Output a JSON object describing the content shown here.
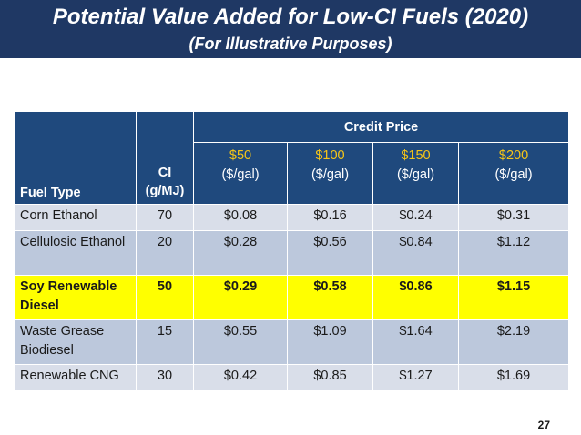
{
  "title": "Potential Value Added for Low-CI Fuels (2020)",
  "subtitle": "(For Illustrative Purposes)",
  "table": {
    "group_header": "Credit Price",
    "col_fuel": "Fuel Type",
    "col_ci_line1": "CI",
    "col_ci_line2": "(g/MJ)",
    "price_columns": [
      {
        "amount": "$50",
        "unit": "($/gal)"
      },
      {
        "amount": "$100",
        "unit": "($/gal)"
      },
      {
        "amount": "$150",
        "unit": "($/gal)"
      },
      {
        "amount": "$200",
        "unit": "($/gal)"
      }
    ],
    "rows": [
      {
        "fuel": "Corn Ethanol",
        "ci": "70",
        "values": [
          "$0.08",
          "$0.16",
          "$0.24",
          "$0.31"
        ]
      },
      {
        "fuel": "Cellulosic Ethanol",
        "ci": "20",
        "values": [
          "$0.28",
          "$0.56",
          "$0.84",
          "$1.12"
        ]
      },
      {
        "fuel": "Soy Renewable Diesel",
        "ci": "50",
        "values": [
          "$0.29",
          "$0.58",
          "$0.86",
          "$1.15"
        ],
        "highlighted": true
      },
      {
        "fuel": "Waste Grease Biodiesel",
        "ci": "15",
        "values": [
          "$0.55",
          "$1.09",
          "$1.64",
          "$2.19"
        ]
      },
      {
        "fuel": "Renewable CNG",
        "ci": "30",
        "values": [
          "$0.42",
          "$0.85",
          "$1.27",
          "$1.69"
        ]
      }
    ]
  },
  "page_number": "27",
  "colors": {
    "title_bar": "#1f3864",
    "header_fill": "#1f497d",
    "price_amount_text": "#f5c518",
    "row_light": "#d9dee9",
    "row_dark": "#bcc8dc",
    "highlight_row": "#ffff00"
  }
}
